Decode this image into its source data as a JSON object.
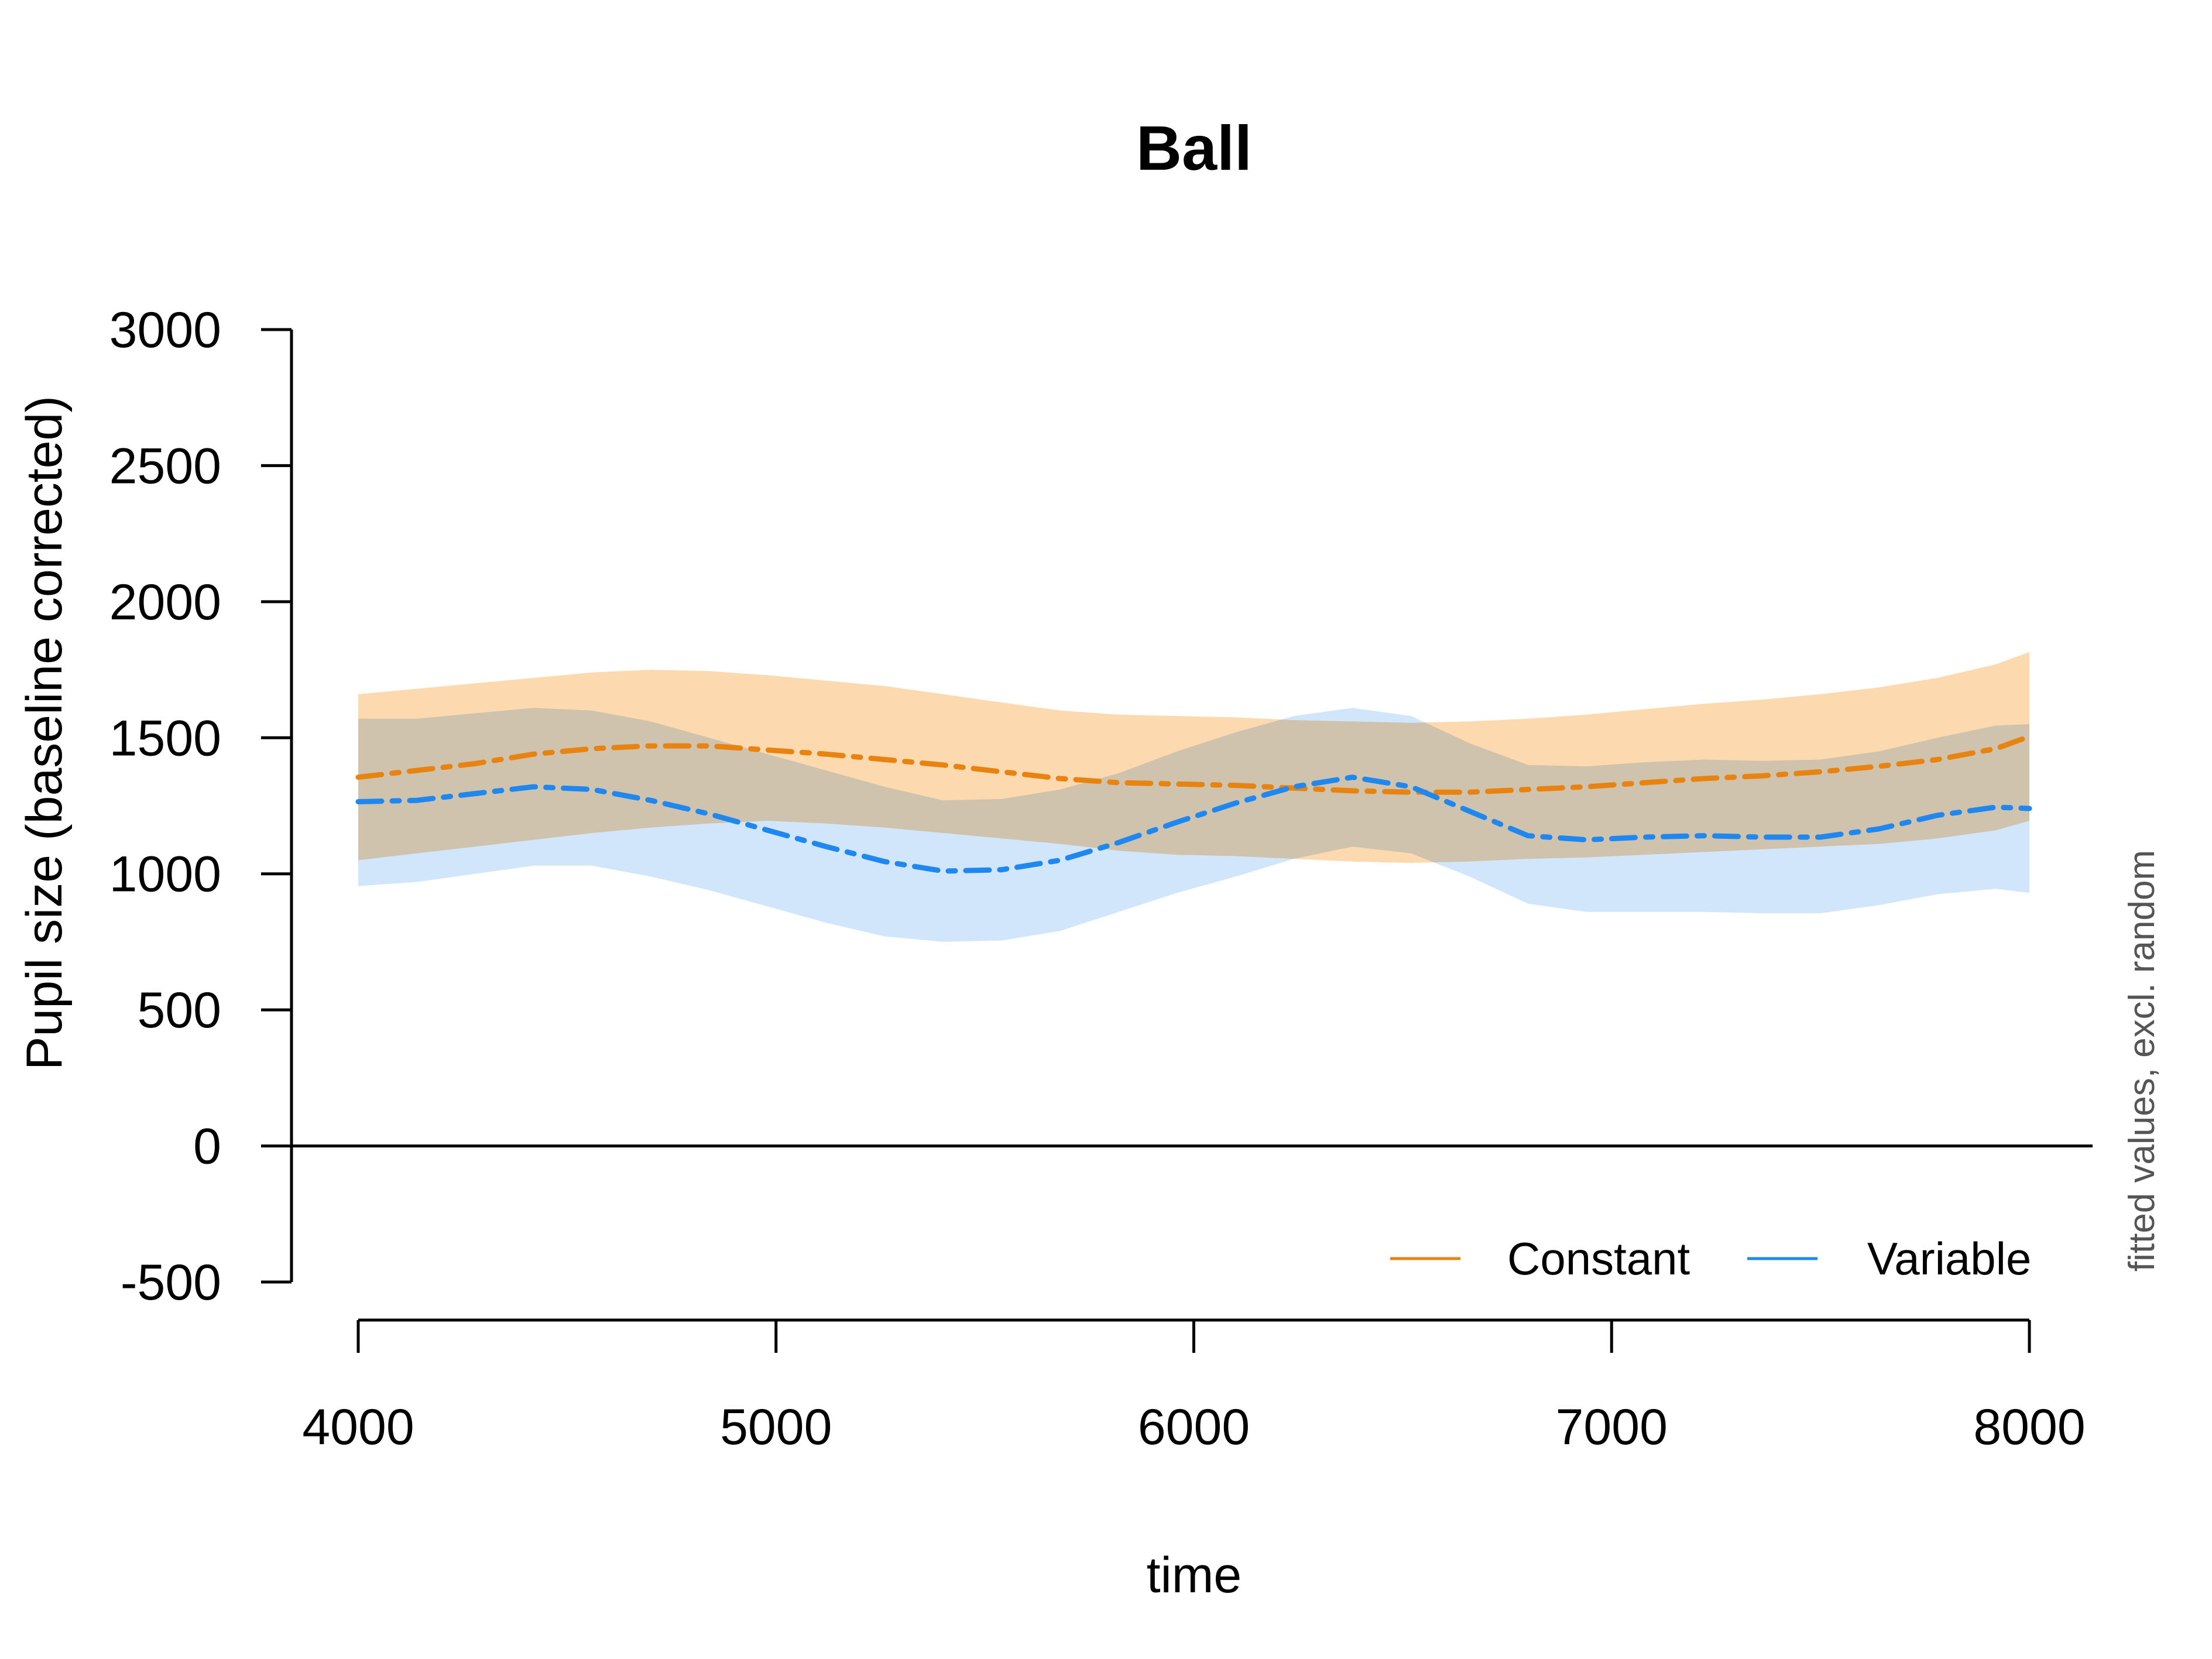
{
  "chart_data": {
    "type": "line",
    "title": "Ball",
    "xlabel": "time",
    "ylabel": "Pupil size (baseline corrected)",
    "note": "fitted values, excl. random",
    "xlim": [
      4000,
      8000
    ],
    "ylim": [
      -500,
      3000
    ],
    "x_ticks": [
      4000,
      5000,
      6000,
      7000,
      8000
    ],
    "y_ticks": [
      -500,
      0,
      500,
      1000,
      1500,
      2000,
      2500,
      3000
    ],
    "reference_line_y": 0,
    "grid": false,
    "legend_position": "bottom-right",
    "x": [
      4000,
      4140,
      4280,
      4420,
      4560,
      4700,
      4840,
      4980,
      5120,
      5260,
      5400,
      5540,
      5680,
      5820,
      5960,
      6100,
      6240,
      6380,
      6520,
      6660,
      6800,
      6940,
      7080,
      7220,
      7360,
      7500,
      7640,
      7780,
      7920,
      8000
    ],
    "series": [
      {
        "name": "Constant",
        "color": "#e8830f",
        "band_color": "#fdd9b0",
        "values": [
          1355,
          1380,
          1405,
          1440,
          1460,
          1470,
          1470,
          1455,
          1440,
          1420,
          1400,
          1375,
          1350,
          1335,
          1330,
          1325,
          1315,
          1305,
          1300,
          1300,
          1310,
          1320,
          1335,
          1350,
          1360,
          1375,
          1395,
          1420,
          1460,
          1505
        ],
        "lower": [
          1050,
          1075,
          1100,
          1125,
          1150,
          1170,
          1185,
          1195,
          1185,
          1170,
          1150,
          1130,
          1110,
          1085,
          1070,
          1065,
          1055,
          1045,
          1040,
          1045,
          1055,
          1060,
          1070,
          1080,
          1090,
          1100,
          1110,
          1130,
          1160,
          1195
        ],
        "upper": [
          1660,
          1680,
          1700,
          1720,
          1740,
          1750,
          1745,
          1730,
          1710,
          1690,
          1660,
          1630,
          1600,
          1585,
          1580,
          1575,
          1565,
          1560,
          1555,
          1560,
          1570,
          1585,
          1605,
          1625,
          1640,
          1660,
          1685,
          1720,
          1770,
          1815
        ]
      },
      {
        "name": "Variable",
        "color": "#1e88f0",
        "band_color": "#c2defa",
        "values": [
          1265,
          1270,
          1295,
          1320,
          1310,
          1270,
          1220,
          1160,
          1100,
          1045,
          1010,
          1015,
          1050,
          1115,
          1190,
          1260,
          1320,
          1355,
          1320,
          1230,
          1140,
          1125,
          1135,
          1140,
          1135,
          1135,
          1165,
          1215,
          1245,
          1240
        ],
        "lower": [
          955,
          970,
          1000,
          1030,
          1030,
          990,
          940,
          880,
          820,
          770,
          750,
          755,
          790,
          860,
          930,
          990,
          1055,
          1100,
          1075,
          990,
          890,
          860,
          860,
          860,
          855,
          855,
          885,
          925,
          945,
          930
        ],
        "upper": [
          1570,
          1570,
          1590,
          1610,
          1600,
          1560,
          1500,
          1440,
          1380,
          1320,
          1270,
          1275,
          1310,
          1370,
          1450,
          1520,
          1580,
          1610,
          1580,
          1480,
          1400,
          1395,
          1410,
          1420,
          1415,
          1420,
          1450,
          1500,
          1545,
          1550
        ]
      }
    ]
  }
}
